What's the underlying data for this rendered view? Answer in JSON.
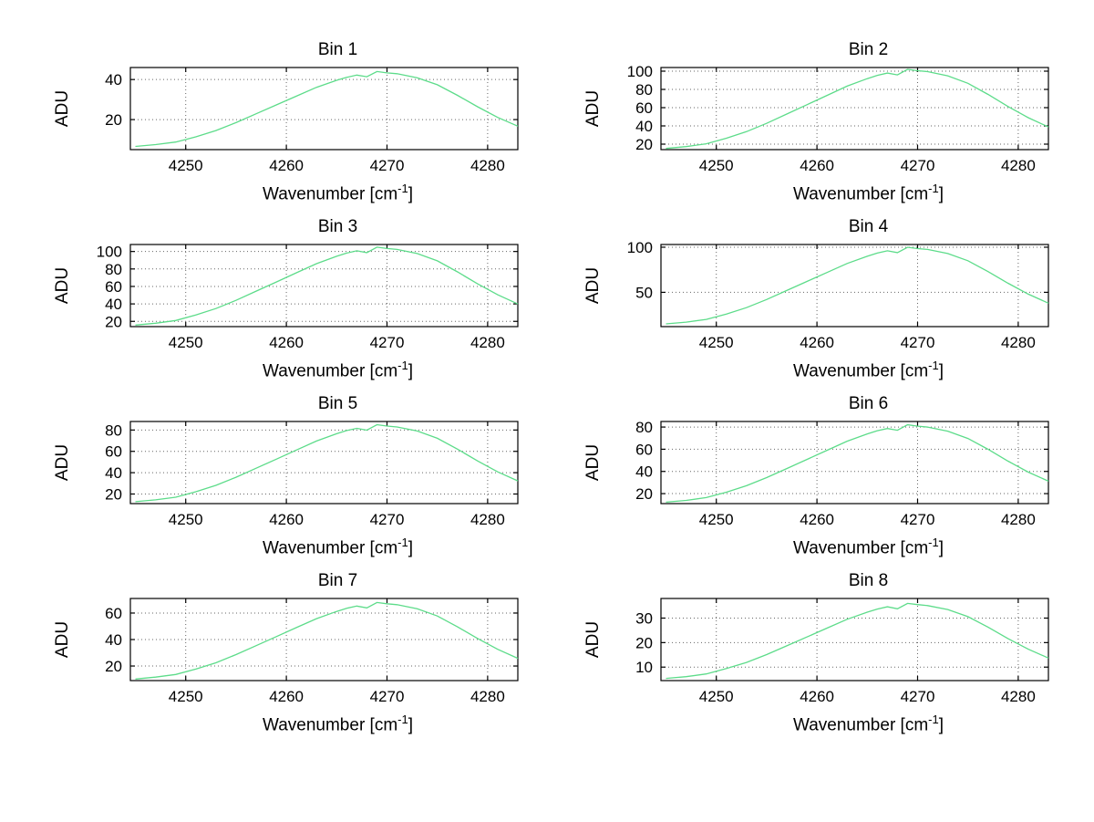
{
  "figure": {
    "background": "#ffffff",
    "line_color": "#5ddc8a",
    "axis_color": "#000000",
    "grid_style": "dotted",
    "xlabel_text": "Wavenumber [cm",
    "xlabel_sup": "-1",
    "xlabel_close": "]",
    "ylabel": "ADU"
  },
  "chart_data": [
    {
      "type": "line",
      "title": "Bin 1",
      "ylabel": "ADU",
      "xlim": [
        4244.5,
        4283
      ],
      "ylim": [
        5,
        46
      ],
      "xticks": [
        4250,
        4260,
        4270,
        4280
      ],
      "yticks": [
        20,
        40
      ],
      "x": [
        4245,
        4247,
        4249,
        4251,
        4253,
        4255,
        4257,
        4259,
        4261,
        4263,
        4265,
        4266,
        4267,
        4268,
        4269,
        4270,
        4271,
        4273,
        4275,
        4277,
        4279,
        4281,
        4283
      ],
      "y": [
        6.6,
        7.5,
        8.8,
        11.4,
        14.5,
        18.5,
        22.9,
        27.3,
        31.7,
        36.1,
        39.6,
        41.1,
        42.2,
        41.4,
        44.0,
        43.3,
        42.9,
        40.9,
        37.4,
        32.1,
        26.4,
        21.1,
        16.7
      ]
    },
    {
      "type": "line",
      "title": "Bin 2",
      "ylabel": "ADU",
      "xlim": [
        4244.5,
        4283
      ],
      "ylim": [
        14,
        104
      ],
      "xticks": [
        4250,
        4260,
        4270,
        4280
      ],
      "yticks": [
        20,
        40,
        60,
        80,
        100
      ],
      "x": [
        4245,
        4247,
        4249,
        4251,
        4253,
        4255,
        4257,
        4259,
        4261,
        4263,
        4265,
        4266,
        4267,
        4268,
        4269,
        4270,
        4271,
        4273,
        4275,
        4277,
        4279,
        4281,
        4283
      ],
      "y": [
        15.3,
        17.3,
        20.4,
        26.5,
        33.7,
        42.8,
        53.0,
        63.2,
        73.4,
        83.6,
        91.8,
        95.4,
        97.9,
        95.9,
        102.0,
        100.5,
        99.5,
        94.9,
        86.7,
        74.5,
        61.2,
        49.0,
        38.8
      ]
    },
    {
      "type": "line",
      "title": "Bin 3",
      "ylabel": "ADU",
      "xlim": [
        4244.5,
        4283
      ],
      "ylim": [
        14,
        108
      ],
      "xticks": [
        4250,
        4260,
        4270,
        4280
      ],
      "yticks": [
        20,
        40,
        60,
        80,
        100
      ],
      "x": [
        4245,
        4247,
        4249,
        4251,
        4253,
        4255,
        4257,
        4259,
        4261,
        4263,
        4265,
        4266,
        4267,
        4268,
        4269,
        4270,
        4271,
        4273,
        4275,
        4277,
        4279,
        4281,
        4283
      ],
      "y": [
        15.8,
        17.9,
        21.0,
        27.3,
        34.7,
        44.1,
        54.6,
        65.1,
        75.6,
        86.1,
        94.5,
        98.2,
        100.8,
        98.7,
        105.0,
        103.4,
        102.4,
        97.7,
        89.3,
        76.7,
        63.0,
        50.4,
        39.9
      ]
    },
    {
      "type": "line",
      "title": "Bin 4",
      "ylabel": "ADU",
      "xlim": [
        4244.5,
        4283
      ],
      "ylim": [
        12,
        103
      ],
      "xticks": [
        4250,
        4260,
        4270,
        4280
      ],
      "yticks": [
        50,
        100
      ],
      "x": [
        4245,
        4247,
        4249,
        4251,
        4253,
        4255,
        4257,
        4259,
        4261,
        4263,
        4265,
        4266,
        4267,
        4268,
        4269,
        4270,
        4271,
        4273,
        4275,
        4277,
        4279,
        4281,
        4283
      ],
      "y": [
        15.0,
        17.0,
        20.0,
        26.0,
        33.0,
        42.0,
        52.0,
        62.0,
        72.0,
        82.0,
        90.0,
        93.5,
        96.0,
        94.0,
        100.0,
        98.5,
        97.5,
        93.0,
        85.0,
        73.0,
        60.0,
        48.0,
        38.0
      ]
    },
    {
      "type": "line",
      "title": "Bin 5",
      "ylabel": "ADU",
      "xlim": [
        4244.5,
        4283
      ],
      "ylim": [
        11,
        88
      ],
      "xticks": [
        4250,
        4260,
        4270,
        4280
      ],
      "yticks": [
        20,
        40,
        60,
        80
      ],
      "x": [
        4245,
        4247,
        4249,
        4251,
        4253,
        4255,
        4257,
        4259,
        4261,
        4263,
        4265,
        4266,
        4267,
        4268,
        4269,
        4270,
        4271,
        4273,
        4275,
        4277,
        4279,
        4281,
        4283
      ],
      "y": [
        12.8,
        14.5,
        17.0,
        22.1,
        28.1,
        35.7,
        44.2,
        52.7,
        61.2,
        69.7,
        76.5,
        79.5,
        81.6,
        79.9,
        85.0,
        83.7,
        82.9,
        79.1,
        72.3,
        62.1,
        51.0,
        40.8,
        32.3
      ]
    },
    {
      "type": "line",
      "title": "Bin 6",
      "ylabel": "ADU",
      "xlim": [
        4244.5,
        4283
      ],
      "ylim": [
        11,
        85
      ],
      "xticks": [
        4250,
        4260,
        4270,
        4280
      ],
      "yticks": [
        20,
        40,
        60,
        80
      ],
      "x": [
        4245,
        4247,
        4249,
        4251,
        4253,
        4255,
        4257,
        4259,
        4261,
        4263,
        4265,
        4266,
        4267,
        4268,
        4269,
        4270,
        4271,
        4273,
        4275,
        4277,
        4279,
        4281,
        4283
      ],
      "y": [
        12.3,
        13.9,
        16.4,
        21.3,
        27.1,
        34.4,
        42.6,
        50.8,
        59.0,
        67.2,
        73.8,
        76.7,
        78.7,
        77.1,
        82.0,
        80.8,
        80.0,
        76.3,
        69.7,
        59.9,
        49.2,
        39.4,
        31.2
      ]
    },
    {
      "type": "line",
      "title": "Bin 7",
      "ylabel": "ADU",
      "xlim": [
        4244.5,
        4283
      ],
      "ylim": [
        9,
        71
      ],
      "xticks": [
        4250,
        4260,
        4270,
        4280
      ],
      "yticks": [
        20,
        40,
        60
      ],
      "x": [
        4245,
        4247,
        4249,
        4251,
        4253,
        4255,
        4257,
        4259,
        4261,
        4263,
        4265,
        4266,
        4267,
        4268,
        4269,
        4270,
        4271,
        4273,
        4275,
        4277,
        4279,
        4281,
        4283
      ],
      "y": [
        10.2,
        11.6,
        13.6,
        17.7,
        22.4,
        28.6,
        35.4,
        42.2,
        49.0,
        55.8,
        61.2,
        63.6,
        65.3,
        63.9,
        68.0,
        67.0,
        66.3,
        63.2,
        57.8,
        49.6,
        40.8,
        32.6,
        25.8
      ]
    },
    {
      "type": "line",
      "title": "Bin 8",
      "ylabel": "ADU",
      "xlim": [
        4244.5,
        4283
      ],
      "ylim": [
        4.5,
        38
      ],
      "xticks": [
        4250,
        4260,
        4270,
        4280
      ],
      "yticks": [
        10,
        20,
        30
      ],
      "x": [
        4245,
        4247,
        4249,
        4251,
        4253,
        4255,
        4257,
        4259,
        4261,
        4263,
        4265,
        4266,
        4267,
        4268,
        4269,
        4270,
        4271,
        4273,
        4275,
        4277,
        4279,
        4281,
        4283
      ],
      "y": [
        5.4,
        6.1,
        7.2,
        9.4,
        11.9,
        15.1,
        18.7,
        22.3,
        25.9,
        29.5,
        32.4,
        33.7,
        34.6,
        33.8,
        36.0,
        35.5,
        35.1,
        33.5,
        30.6,
        26.3,
        21.6,
        17.3,
        13.7
      ]
    }
  ]
}
